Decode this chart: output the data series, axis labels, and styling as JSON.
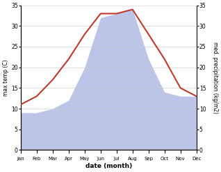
{
  "months": [
    "Jan",
    "Feb",
    "Mar",
    "Apr",
    "May",
    "Jun",
    "Jul",
    "Aug",
    "Sep",
    "Oct",
    "Nov",
    "Dec"
  ],
  "temp": [
    11,
    13,
    17,
    22,
    28,
    33,
    33,
    34,
    28,
    22,
    15,
    13
  ],
  "precip": [
    9,
    9,
    10,
    12,
    20,
    32,
    33,
    34,
    22,
    14,
    13,
    13
  ],
  "temp_color": "#c0392b",
  "precip_fill_color": "#bcc5e8",
  "left_ylim": [
    0,
    35
  ],
  "right_ylim": [
    0,
    35
  ],
  "xlabel": "date (month)",
  "ylabel_left": "max temp (C)",
  "ylabel_right": "med. precipitation (kg/m2)",
  "left_yticks": [
    0,
    5,
    10,
    15,
    20,
    25,
    30,
    35
  ],
  "right_yticks": [
    0,
    5,
    10,
    15,
    20,
    25,
    30,
    35
  ],
  "temp_linewidth": 1.5,
  "bg_color": "#ffffff",
  "grid_color": "#cccccc"
}
